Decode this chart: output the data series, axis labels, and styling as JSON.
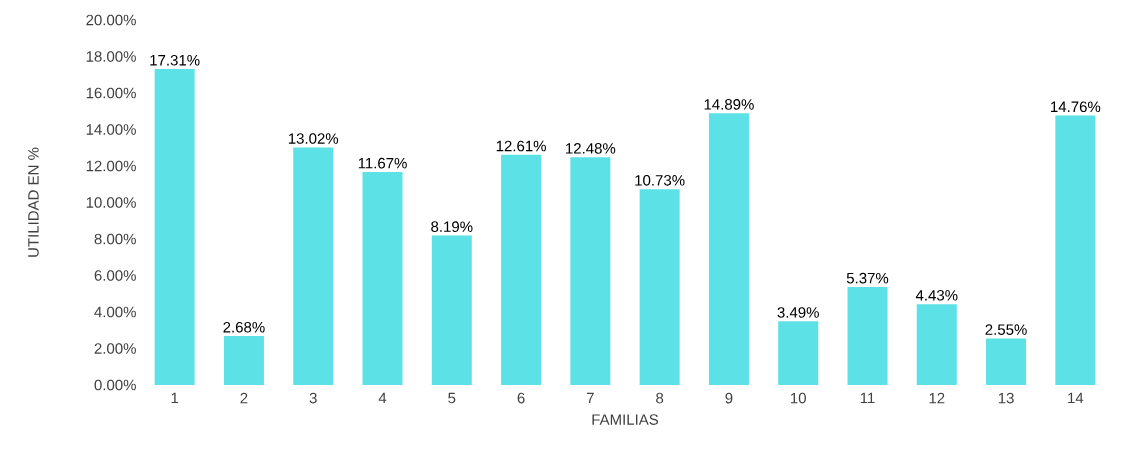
{
  "chart_data": {
    "type": "bar",
    "xlabel": "FAMILIAS",
    "ylabel": "UTILIDAD EN %",
    "categories": [
      "1",
      "2",
      "3",
      "4",
      "5",
      "6",
      "7",
      "8",
      "9",
      "10",
      "11",
      "12",
      "13",
      "14"
    ],
    "values": [
      17.31,
      2.68,
      13.02,
      11.67,
      8.19,
      12.61,
      12.48,
      10.73,
      14.89,
      3.49,
      5.37,
      4.43,
      2.55,
      14.76
    ],
    "value_labels": [
      "17.31%",
      "2.68%",
      "13.02%",
      "11.67%",
      "8.19%",
      "12.61%",
      "12.48%",
      "10.73%",
      "14.89%",
      "3.49%",
      "5.37%",
      "4.43%",
      "2.55%",
      "14.76%"
    ],
    "color": "#5ce1e6",
    "ylim": [
      0,
      20
    ],
    "yticks": [
      {
        "value": 0,
        "label": "0.00%"
      },
      {
        "value": 2,
        "label": "2.00%"
      },
      {
        "value": 4,
        "label": "4.00%"
      },
      {
        "value": 6,
        "label": "6.00%"
      },
      {
        "value": 8,
        "label": "8.00%"
      },
      {
        "value": 10,
        "label": "10.00%"
      },
      {
        "value": 12,
        "label": "12.00%"
      },
      {
        "value": 14,
        "label": "14.00%"
      },
      {
        "value": 16,
        "label": "16.00%"
      },
      {
        "value": 18,
        "label": "18.00%"
      },
      {
        "value": 20,
        "label": "20.00%"
      }
    ],
    "grid": false
  }
}
